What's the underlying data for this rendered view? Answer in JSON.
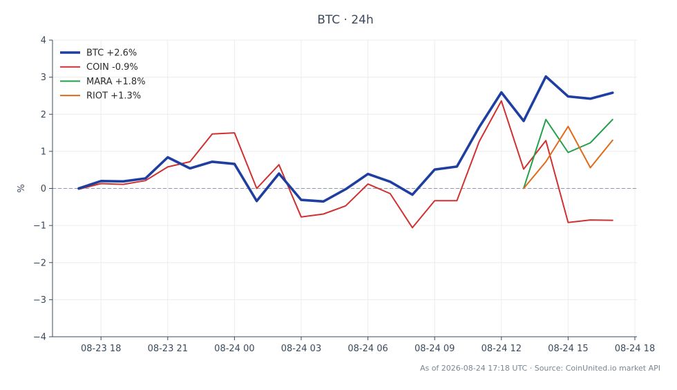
{
  "chart_data": {
    "type": "line",
    "title": "BTC · 24h",
    "ylabel": "%",
    "xlabel": "",
    "ylim": [
      -4,
      4
    ],
    "yticks": [
      -4,
      -3,
      -2,
      -1,
      0,
      1,
      2,
      3,
      4
    ],
    "ytick_labels": [
      "−4",
      "−3",
      "−2",
      "−1",
      "0",
      "1",
      "2",
      "3",
      "4"
    ],
    "x": [
      "08-23 17:00",
      "08-23 18:00",
      "08-23 19:00",
      "08-23 20:00",
      "08-23 21:00",
      "08-23 22:00",
      "08-23 23:00",
      "08-24 00:00",
      "08-24 01:00",
      "08-24 02:00",
      "08-24 03:00",
      "08-24 04:00",
      "08-24 05:00",
      "08-24 06:00",
      "08-24 07:00",
      "08-24 08:00",
      "08-24 09:00",
      "08-24 10:00",
      "08-24 11:00",
      "08-24 12:00",
      "08-24 13:00",
      "08-24 14:00",
      "08-24 15:00",
      "08-24 16:00",
      "08-24 17:00"
    ],
    "xtick_labels": [
      "08-23 18",
      "08-23 21",
      "08-24 00",
      "08-24 03",
      "08-24 06",
      "08-24 09",
      "08-24 12",
      "08-24 15",
      "08-24 18"
    ],
    "grid": true,
    "legend_position": "top-left",
    "series": [
      {
        "name": "BTC +2.6%",
        "color": "#1f3fa0",
        "values": [
          0.0,
          0.2,
          0.19,
          0.27,
          0.84,
          0.54,
          0.72,
          0.66,
          -0.34,
          0.4,
          -0.31,
          -0.35,
          -0.02,
          0.39,
          0.18,
          -0.17,
          0.51,
          0.59,
          1.65,
          2.59,
          1.82,
          3.02,
          2.48,
          2.42,
          2.58
        ]
      },
      {
        "name": "COIN -0.9%",
        "color": "#d03030",
        "values": [
          -0.02,
          0.13,
          0.11,
          0.21,
          0.58,
          0.72,
          1.47,
          1.5,
          0.0,
          0.64,
          -0.77,
          -0.69,
          -0.47,
          0.12,
          -0.14,
          -1.06,
          -0.33,
          -0.33,
          1.26,
          2.36,
          0.52,
          1.29,
          -0.92,
          -0.85,
          -0.86
        ]
      },
      {
        "name": "MARA +1.8%",
        "color": "#22a04a",
        "values": [
          null,
          null,
          null,
          null,
          null,
          null,
          null,
          null,
          null,
          null,
          null,
          null,
          null,
          null,
          null,
          null,
          null,
          null,
          null,
          null,
          0.0,
          1.86,
          0.97,
          1.23,
          1.86
        ]
      },
      {
        "name": "RIOT +1.3%",
        "color": "#e06a1a",
        "values": [
          null,
          null,
          null,
          null,
          null,
          null,
          null,
          null,
          null,
          null,
          null,
          null,
          null,
          null,
          null,
          null,
          null,
          null,
          null,
          null,
          0.0,
          0.72,
          1.67,
          0.56,
          1.3
        ]
      }
    ]
  },
  "footer": {
    "text": "As of 2026-08-24 17:18 UTC · Source: CoinUnited.io market API"
  }
}
